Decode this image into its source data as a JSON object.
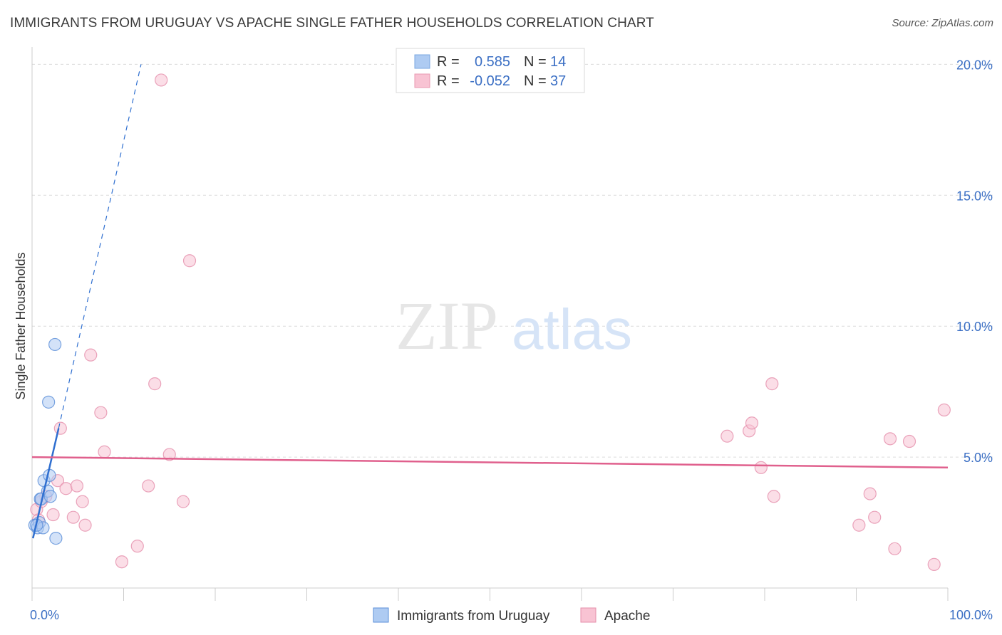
{
  "header": {
    "title": "IMMIGRANTS FROM URUGUAY VS APACHE SINGLE FATHER HOUSEHOLDS CORRELATION CHART",
    "source": "Source: ZipAtlas.com"
  },
  "watermark": {
    "zip": "ZIP",
    "atlas": "atlas"
  },
  "chart_data": {
    "type": "scatter",
    "ylabel": "Single Father Households",
    "xlim": [
      0,
      100
    ],
    "ylim": [
      0,
      20.5
    ],
    "x_tick_labels": [
      {
        "value": 0,
        "label": "0.0%"
      },
      {
        "value": 100,
        "label": "100.0%"
      }
    ],
    "x_minor_ticks": [
      0,
      10,
      20,
      30,
      40,
      50,
      60,
      70,
      80,
      90,
      100
    ],
    "y_ticks": [
      {
        "value": 5,
        "label": "5.0%"
      },
      {
        "value": 10,
        "label": "10.0%"
      },
      {
        "value": 15,
        "label": "15.0%"
      },
      {
        "value": 20,
        "label": "20.0%"
      }
    ],
    "grid": true,
    "legend_position": "top-center",
    "stats_legend": [
      {
        "r_label": "R =",
        "r_value": "0.585",
        "n_label": "N =",
        "n_value": "14",
        "color": "#aecbf2",
        "stroke": "#7aa7e0"
      },
      {
        "r_label": "R =",
        "r_value": "-0.052",
        "n_label": "N =",
        "n_value": "37",
        "color": "#f8c3d3",
        "stroke": "#e99ab2"
      }
    ],
    "series": [
      {
        "name": "Immigrants from Uruguay",
        "color": "#aecbf2",
        "stroke": "#5b8fd8",
        "line_color": "#2f6fd0",
        "trend": {
          "solid": [
            [
              0.1,
              1.9
            ],
            [
              2.9,
              6.1
            ]
          ],
          "dashed": [
            [
              2.9,
              6.1
            ],
            [
              11.9,
              20.0
            ]
          ]
        },
        "points": [
          [
            0.3,
            2.4
          ],
          [
            0.6,
            2.3
          ],
          [
            0.8,
            2.5
          ],
          [
            0.9,
            3.4
          ],
          [
            1.0,
            3.4
          ],
          [
            1.2,
            2.3
          ],
          [
            1.3,
            4.1
          ],
          [
            1.7,
            3.7
          ],
          [
            1.8,
            7.1
          ],
          [
            1.9,
            4.3
          ],
          [
            2.0,
            3.5
          ],
          [
            2.5,
            9.3
          ],
          [
            2.6,
            1.9
          ],
          [
            0.5,
            2.4
          ]
        ]
      },
      {
        "name": "Apache",
        "color": "#f8c3d3",
        "stroke": "#e58fab",
        "line_color": "#e0608d",
        "trend": {
          "solid": [
            [
              0,
              5.0
            ],
            [
              100,
              4.6
            ]
          ]
        },
        "points": [
          [
            0.5,
            3.0
          ],
          [
            0.7,
            2.6
          ],
          [
            1.0,
            3.3
          ],
          [
            1.5,
            3.5
          ],
          [
            2.3,
            2.8
          ],
          [
            2.8,
            4.1
          ],
          [
            3.1,
            6.1
          ],
          [
            3.7,
            3.8
          ],
          [
            4.5,
            2.7
          ],
          [
            4.9,
            3.9
          ],
          [
            5.5,
            3.3
          ],
          [
            5.8,
            2.4
          ],
          [
            6.4,
            8.9
          ],
          [
            7.5,
            6.7
          ],
          [
            7.9,
            5.2
          ],
          [
            9.8,
            1.0
          ],
          [
            11.5,
            1.6
          ],
          [
            12.7,
            3.9
          ],
          [
            13.4,
            7.8
          ],
          [
            14.1,
            19.4
          ],
          [
            15.0,
            5.1
          ],
          [
            16.5,
            3.3
          ],
          [
            17.2,
            12.5
          ],
          [
            75.9,
            5.8
          ],
          [
            78.3,
            6.0
          ],
          [
            78.6,
            6.3
          ],
          [
            79.6,
            4.6
          ],
          [
            80.8,
            7.8
          ],
          [
            81.0,
            3.5
          ],
          [
            90.3,
            2.4
          ],
          [
            91.5,
            3.6
          ],
          [
            92.0,
            2.7
          ],
          [
            93.7,
            5.7
          ],
          [
            94.2,
            1.5
          ],
          [
            95.8,
            5.6
          ],
          [
            98.5,
            0.9
          ],
          [
            99.6,
            6.8
          ]
        ]
      }
    ]
  }
}
